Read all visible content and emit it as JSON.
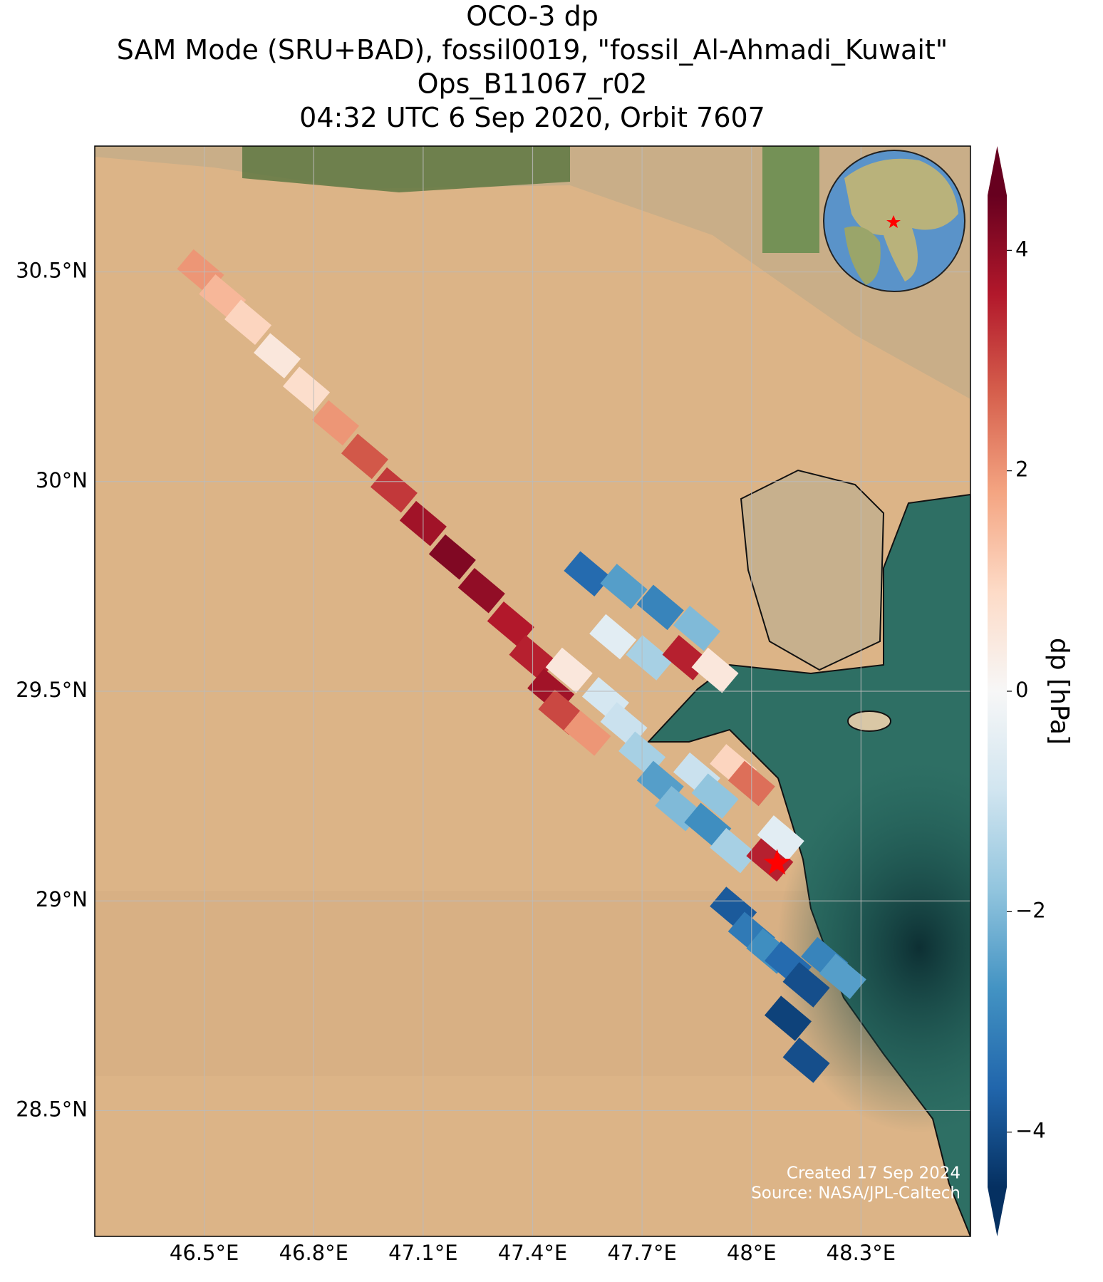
{
  "chart_data": {
    "type": "map",
    "title": [
      "OCO-3 dp",
      "SAM Mode (SRU+BAD), fossil0019, \"fossil_Al-Ahmadi_Kuwait\"",
      "Ops_B11067_r02",
      "04:32 UTC 6 Sep 2020, Orbit 7607"
    ],
    "xlim": [
      46.2,
      48.6
    ],
    "ylim": [
      28.2,
      30.8
    ],
    "xticks": [
      {
        "value": 46.5,
        "label": "46.5°E"
      },
      {
        "value": 46.8,
        "label": "46.8°E"
      },
      {
        "value": 47.1,
        "label": "47.1°E"
      },
      {
        "value": 47.4,
        "label": "47.4°E"
      },
      {
        "value": 47.7,
        "label": "47.7°E"
      },
      {
        "value": 48.0,
        "label": "48°E"
      },
      {
        "value": 48.3,
        "label": "48.3°E"
      }
    ],
    "yticks": [
      {
        "value": 28.5,
        "label": "28.5°N"
      },
      {
        "value": 29.0,
        "label": "29°N"
      },
      {
        "value": 29.5,
        "label": "29.5°N"
      },
      {
        "value": 30.0,
        "label": "30°N"
      },
      {
        "value": 30.5,
        "label": "30.5°N"
      }
    ],
    "grid": true,
    "colorbar": {
      "label": "dp [hPa]",
      "clim": [
        -4.5,
        4.5
      ],
      "ticks": [
        {
          "value": -4,
          "label": "−4"
        },
        {
          "value": -2,
          "label": "−2"
        },
        0,
        2,
        4
      ],
      "colors": [
        "#053061",
        "#2166ac",
        "#4393c3",
        "#92c5de",
        "#d1e5f0",
        "#f7f7f7",
        "#fddbc7",
        "#f4a582",
        "#d6604d",
        "#b2182b",
        "#67001f"
      ]
    },
    "site": {
      "lon": 48.07,
      "lat": 29.09,
      "color": "#ff0000"
    },
    "footprints": {
      "lon": [
        46.49,
        46.55,
        46.62,
        46.7,
        46.78,
        46.86,
        46.94,
        47.02,
        47.1,
        47.18,
        47.26,
        47.34,
        47.4,
        47.45,
        47.48,
        47.55,
        47.55,
        47.65,
        47.75,
        47.85,
        47.62,
        47.72,
        47.82,
        47.9,
        47.5,
        47.6,
        47.65,
        47.7,
        47.75,
        47.8,
        47.85,
        47.9,
        47.95,
        48.0,
        47.88,
        47.95,
        48.05,
        48.08,
        47.95,
        48.0,
        48.05,
        48.1,
        48.15,
        48.2,
        48.25,
        48.1,
        48.15
      ],
      "lat": [
        30.5,
        30.44,
        30.38,
        30.3,
        30.22,
        30.14,
        30.06,
        29.98,
        29.9,
        29.82,
        29.74,
        29.66,
        29.58,
        29.5,
        29.45,
        29.4,
        29.78,
        29.75,
        29.7,
        29.65,
        29.63,
        29.58,
        29.58,
        29.55,
        29.55,
        29.48,
        29.42,
        29.35,
        29.28,
        29.22,
        29.3,
        29.25,
        29.32,
        29.28,
        29.18,
        29.12,
        29.1,
        29.15,
        28.98,
        28.92,
        28.88,
        28.85,
        28.8,
        28.86,
        28.82,
        28.72,
        28.62
      ],
      "values": [
        2.0,
        1.5,
        1.0,
        0.5,
        0.8,
        2.0,
        2.8,
        3.2,
        3.8,
        4.2,
        4.0,
        3.6,
        3.5,
        3.8,
        3.0,
        2.0,
        -3.5,
        -2.5,
        -3.0,
        -2.0,
        -0.5,
        -1.5,
        3.5,
        0.5,
        0.5,
        -0.8,
        -1.0,
        -1.5,
        -2.5,
        -2.0,
        -1.0,
        -1.8,
        1.0,
        2.5,
        -2.8,
        -1.5,
        3.5,
        -0.5,
        -3.8,
        -3.2,
        -2.8,
        -3.5,
        -4.0,
        -3.0,
        -2.5,
        -4.2,
        -4.0
      ]
    },
    "credits": [
      "Created 17 Sep 2024",
      "Source: NASA/JPL-Caltech"
    ]
  }
}
